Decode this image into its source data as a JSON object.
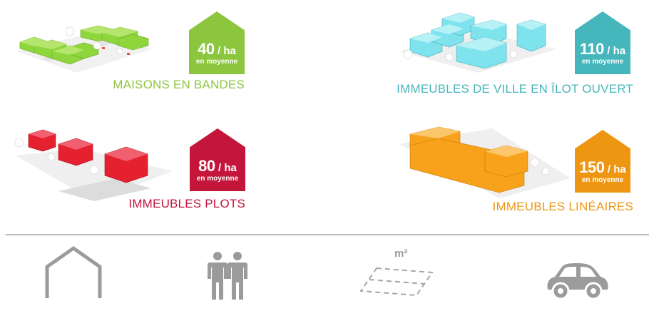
{
  "typologies": [
    {
      "label": "MAISONS EN BANDES",
      "density_value": "40",
      "density_unit": "/ ha",
      "density_note": "en moyenne",
      "color": "#8cc63e"
    },
    {
      "label": "IMMEUBLES DE VILLE EN ÎLOT OUVERT",
      "density_value": "110",
      "density_unit": "/ ha",
      "density_note": "en moyenne",
      "color": "#45b6bc"
    },
    {
      "label": "IMMEUBLES PLOTS",
      "density_value": "80",
      "density_unit": "/ ha",
      "density_note": "en moyenne",
      "color": "#c4153a"
    },
    {
      "label": "IMMEUBLES LINÉAIRES",
      "density_value": "150",
      "density_unit": "/ ha",
      "density_note": "en moyenne",
      "color": "#ee9612"
    }
  ],
  "bottom_icons": {
    "house": "house-outline-icon",
    "people": "people-icon",
    "surface": "surface-area-icon",
    "surface_label": "m²",
    "car": "car-icon",
    "icon_color": "#9b9b9b"
  }
}
